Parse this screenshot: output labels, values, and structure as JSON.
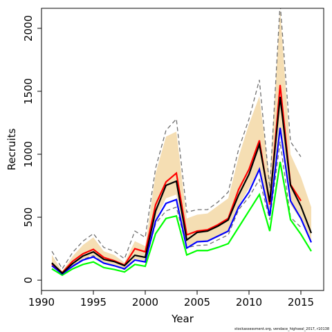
{
  "chart_data": {
    "type": "line",
    "xlabel": "Year",
    "ylabel": "Recruits",
    "note": "stockassessment.org, vendace_highseal_2017, r10138",
    "x": [
      1991,
      1992,
      1993,
      1994,
      1995,
      1996,
      1997,
      1998,
      1999,
      2000,
      2001,
      2002,
      2003,
      2004,
      2005,
      2006,
      2007,
      2008,
      2009,
      2010,
      2011,
      2012,
      2013,
      2014,
      2015,
      2016
    ],
    "xlim": [
      1990,
      2017.2
    ],
    "ylim": [
      -82,
      2159
    ],
    "xticks": [
      1990,
      1995,
      2000,
      2005,
      2010,
      2015
    ],
    "yticks": [
      0,
      500,
      1000,
      1500,
      2000
    ],
    "band": {
      "color": "#f5deb3",
      "upper": [
        200,
        70,
        190,
        280,
        340,
        230,
        200,
        140,
        310,
        270,
        850,
        1140,
        1180,
        490,
        520,
        530,
        590,
        650,
        980,
        1240,
        1460,
        800,
        2150,
        1000,
        820,
        580
      ],
      "lower": [
        120,
        50,
        120,
        170,
        200,
        140,
        120,
        90,
        170,
        150,
        480,
        650,
        680,
        270,
        300,
        310,
        340,
        380,
        590,
        730,
        880,
        500,
        1200,
        600,
        480,
        310
      ]
    },
    "series": [
      {
        "color": "#707070",
        "dashed": true,
        "values": [
          230,
          90,
          220,
          310,
          370,
          260,
          230,
          170,
          390,
          340,
          890,
          1190,
          1280,
          540,
          560,
          560,
          620,
          700,
          1040,
          1280,
          1590,
          730,
          2200,
          1100,
          980,
          null
        ]
      },
      {
        "color": "#707070",
        "dashed": true,
        "values": [
          115,
          45,
          115,
          165,
          195,
          135,
          115,
          85,
          160,
          145,
          450,
          550,
          580,
          260,
          275,
          280,
          320,
          360,
          560,
          660,
          800,
          480,
          1100,
          500,
          420,
          null
        ]
      },
      {
        "color": "#00ff00",
        "dashed": false,
        "values": [
          90,
          40,
          90,
          125,
          145,
          100,
          85,
          65,
          125,
          110,
          370,
          490,
          510,
          200,
          235,
          235,
          260,
          290,
          420,
          550,
          680,
          390,
          940,
          480,
          365,
          230
        ]
      },
      {
        "color": "#0000ff",
        "dashed": false,
        "values": [
          115,
          50,
          110,
          160,
          185,
          135,
          115,
          90,
          160,
          145,
          470,
          610,
          640,
          255,
          305,
          310,
          350,
          390,
          580,
          700,
          880,
          510,
          1210,
          630,
          490,
          300
        ]
      },
      {
        "color": "#ff0000",
        "dashed": false,
        "values": [
          130,
          60,
          150,
          210,
          245,
          180,
          155,
          120,
          250,
          225,
          600,
          780,
          850,
          360,
          390,
          400,
          440,
          490,
          720,
          880,
          1110,
          600,
          1550,
          760,
          630,
          null
        ]
      },
      {
        "color": "#000000",
        "dashed": false,
        "values": [
          137,
          55,
          132,
          192,
          225,
          165,
          148,
          115,
          198,
          181,
          549,
          753,
          786,
          319,
          379,
          390,
          429,
          478,
          676,
          841,
          1077,
          621,
          1456,
          753,
          588,
          374
        ]
      }
    ]
  }
}
